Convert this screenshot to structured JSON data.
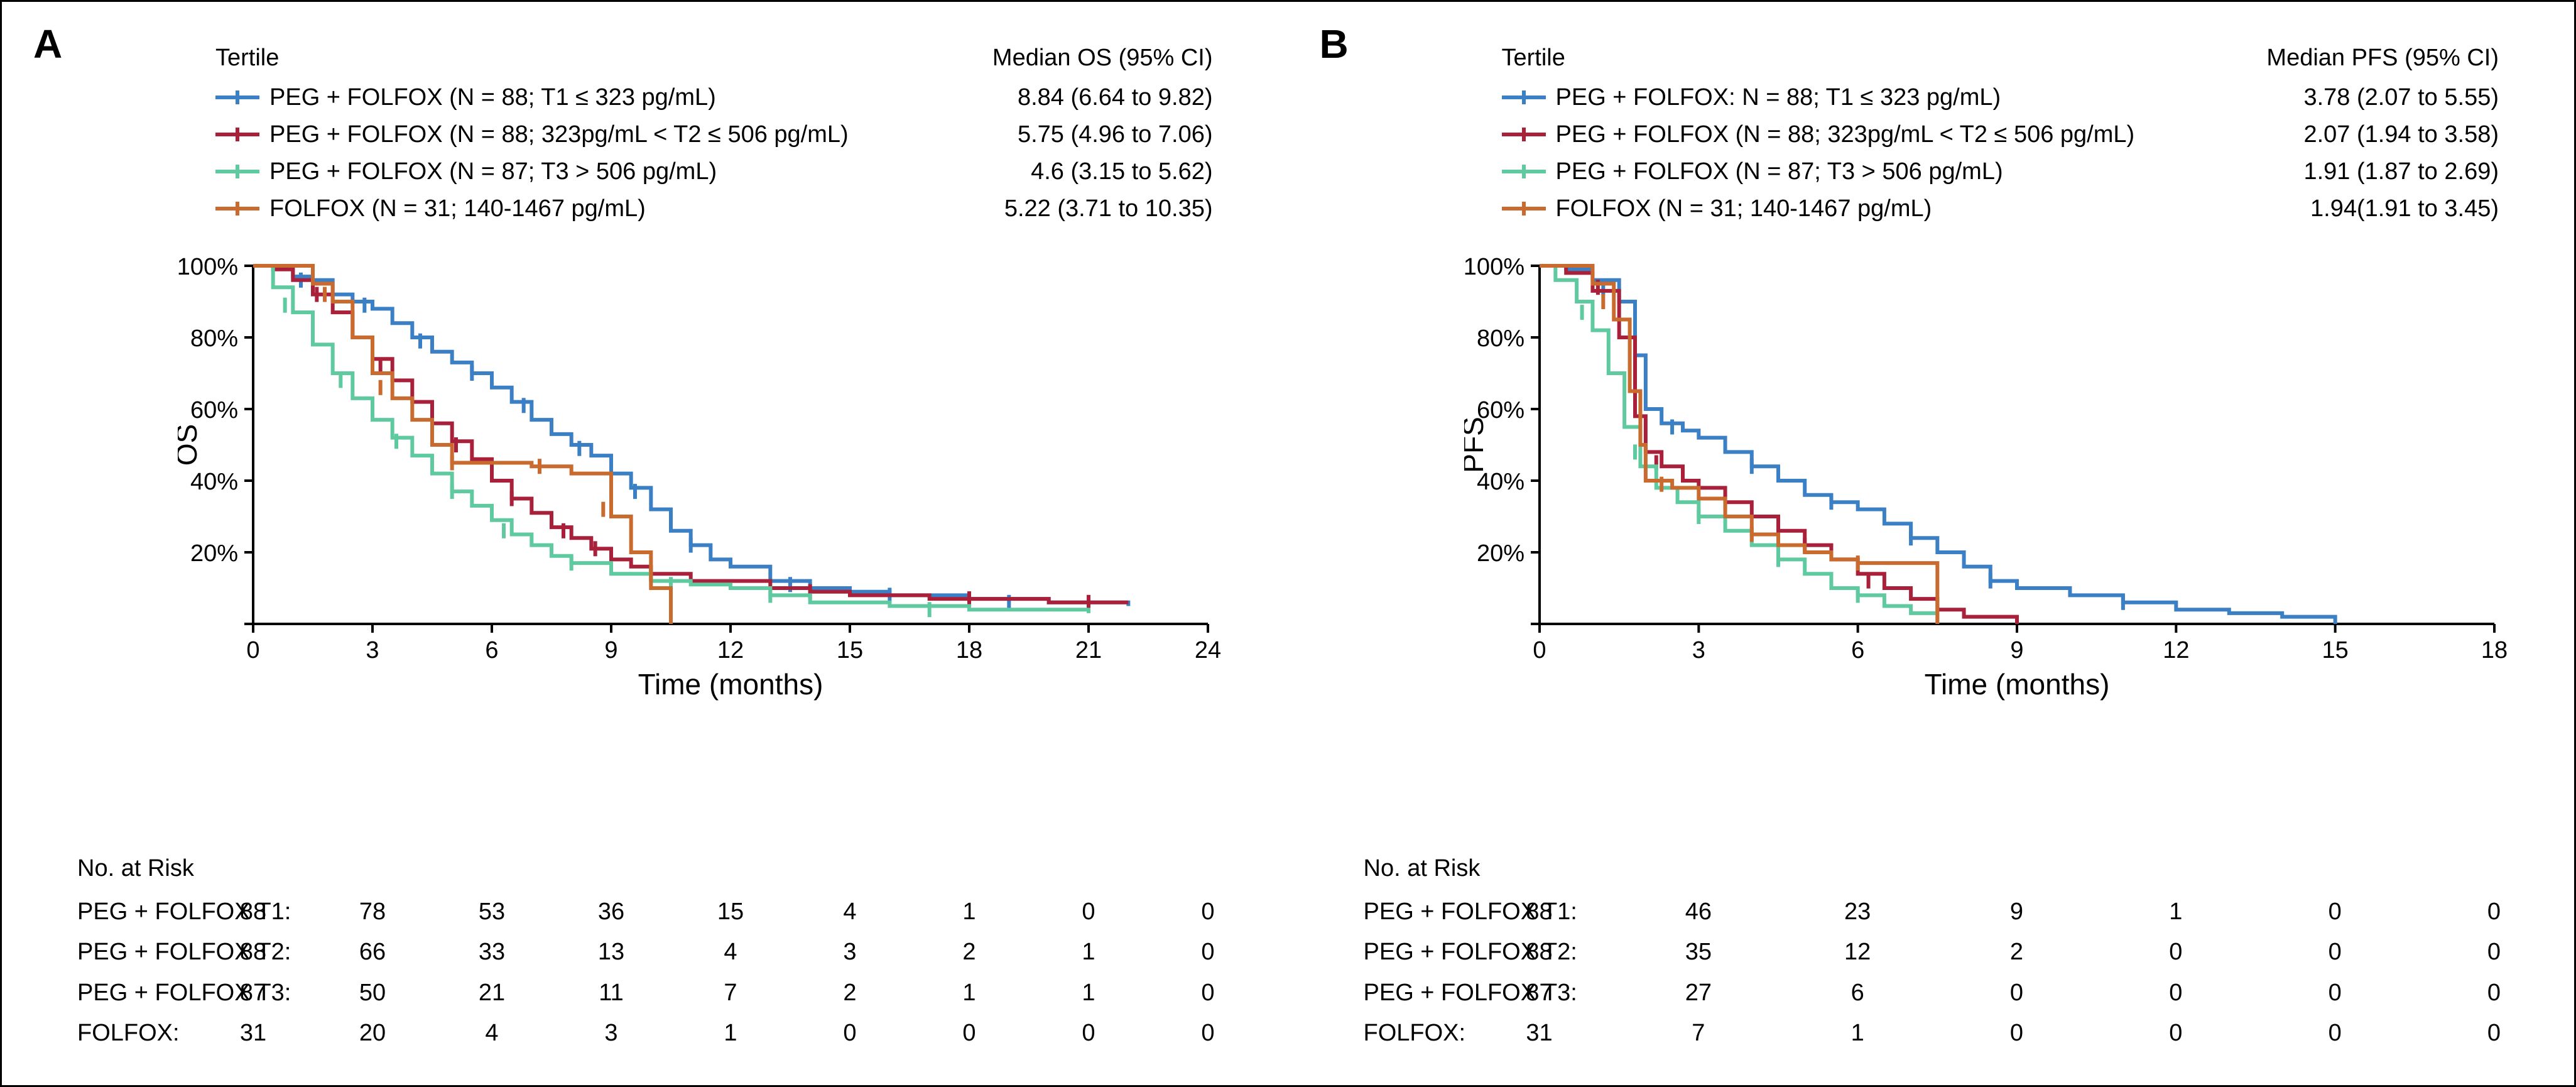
{
  "colors": {
    "t1": "#3b7fc4",
    "t2": "#a8203a",
    "t3": "#5fc9a0",
    "folfox": "#c96a2e",
    "axis": "#000000",
    "bg": "#ffffff"
  },
  "fontsize": {
    "panel_label": 64,
    "legend": 38,
    "axis_label": 46,
    "tick": 38,
    "risk": 38
  },
  "line_width": 6,
  "panels": [
    {
      "id": "A",
      "y_label": "OS",
      "x_label": "Time (months)",
      "median_header": "Median OS (95% CI)",
      "tertile_header": "Tertile",
      "xlim": [
        0,
        24
      ],
      "xtick_step": 3,
      "ylim": [
        0,
        100
      ],
      "ytick_step": 20,
      "y_suffix": "%",
      "series": [
        {
          "key": "t1",
          "label": "PEG + FOLFOX (N = 88; T1 ≤ 323 pg/mL)",
          "median": "8.84 (6.64 to 9.82)",
          "points": [
            [
              0,
              100
            ],
            [
              0.5,
              100
            ],
            [
              1,
              97
            ],
            [
              1.5,
              96
            ],
            [
              2,
              92
            ],
            [
              2.5,
              90
            ],
            [
              3,
              88
            ],
            [
              3.5,
              84
            ],
            [
              4,
              80
            ],
            [
              4.5,
              76
            ],
            [
              5,
              73
            ],
            [
              5.5,
              70
            ],
            [
              6,
              66
            ],
            [
              6.5,
              62
            ],
            [
              7,
              57
            ],
            [
              7.5,
              53
            ],
            [
              8,
              50
            ],
            [
              8.5,
              47
            ],
            [
              9,
              42
            ],
            [
              9.5,
              38
            ],
            [
              10,
              32
            ],
            [
              10.5,
              26
            ],
            [
              11,
              22
            ],
            [
              11.5,
              18
            ],
            [
              12,
              16
            ],
            [
              13,
              12
            ],
            [
              14,
              10
            ],
            [
              15,
              9
            ],
            [
              16,
              8
            ],
            [
              18,
              7
            ],
            [
              20,
              6
            ],
            [
              22,
              5
            ]
          ],
          "censors": [
            [
              1.2,
              96
            ],
            [
              2.8,
              89
            ],
            [
              4.2,
              79
            ],
            [
              5.5,
              70
            ],
            [
              6.8,
              61
            ],
            [
              8.2,
              49
            ],
            [
              9.6,
              37
            ],
            [
              11,
              22
            ],
            [
              13.5,
              11
            ],
            [
              16,
              8
            ],
            [
              19,
              6
            ]
          ]
        },
        {
          "key": "t2",
          "label": "PEG + FOLFOX (N = 88; 323pg/mL < T2 ≤ 506 pg/mL)",
          "median": "5.75 (4.96 to 7.06)",
          "points": [
            [
              0,
              100
            ],
            [
              0.5,
              99
            ],
            [
              1,
              96
            ],
            [
              1.5,
              92
            ],
            [
              2,
              87
            ],
            [
              2.5,
              80
            ],
            [
              3,
              74
            ],
            [
              3.5,
              68
            ],
            [
              4,
              62
            ],
            [
              4.5,
              56
            ],
            [
              5,
              51
            ],
            [
              5.5,
              46
            ],
            [
              6,
              40
            ],
            [
              6.5,
              35
            ],
            [
              7,
              31
            ],
            [
              7.5,
              27
            ],
            [
              8,
              24
            ],
            [
              8.5,
              21
            ],
            [
              9,
              18
            ],
            [
              9.5,
              16
            ],
            [
              10,
              14
            ],
            [
              11,
              12
            ],
            [
              12,
              12
            ],
            [
              13,
              10
            ],
            [
              14,
              9
            ],
            [
              15,
              8
            ],
            [
              17,
              7
            ],
            [
              20,
              6
            ],
            [
              22,
              6
            ]
          ],
          "censors": [
            [
              1.6,
              92
            ],
            [
              3.2,
              72
            ],
            [
              5.1,
              50
            ],
            [
              6.5,
              35
            ],
            [
              7.8,
              26
            ],
            [
              8.6,
              21
            ],
            [
              10,
              14
            ],
            [
              14,
              9
            ],
            [
              18,
              7
            ],
            [
              21,
              6
            ]
          ]
        },
        {
          "key": "t3",
          "label": "PEG + FOLFOX (N = 87; T3 > 506 pg/mL)",
          "median": "4.6 (3.15 to 5.62)",
          "points": [
            [
              0,
              100
            ],
            [
              0.5,
              94
            ],
            [
              1,
              87
            ],
            [
              1.5,
              78
            ],
            [
              2,
              70
            ],
            [
              2.5,
              63
            ],
            [
              3,
              57
            ],
            [
              3.5,
              52
            ],
            [
              4,
              47
            ],
            [
              4.5,
              42
            ],
            [
              5,
              37
            ],
            [
              5.5,
              33
            ],
            [
              6,
              29
            ],
            [
              6.5,
              25
            ],
            [
              7,
              22
            ],
            [
              7.5,
              19
            ],
            [
              8,
              17
            ],
            [
              9,
              14
            ],
            [
              10,
              12
            ],
            [
              11,
              11
            ],
            [
              12,
              10
            ],
            [
              13,
              8
            ],
            [
              14,
              6
            ],
            [
              16,
              5
            ],
            [
              18,
              4
            ],
            [
              21,
              3
            ]
          ],
          "censors": [
            [
              0.8,
              89
            ],
            [
              2.2,
              68
            ],
            [
              3.6,
              51
            ],
            [
              5,
              37
            ],
            [
              6.3,
              26
            ],
            [
              8,
              17
            ],
            [
              10.5,
              11
            ],
            [
              13,
              8
            ],
            [
              17,
              4
            ]
          ]
        },
        {
          "key": "folfox",
          "label": "FOLFOX (N = 31; 140-1467 pg/mL)",
          "median": "5.22 (3.71 to 10.35)",
          "points": [
            [
              0,
              100
            ],
            [
              1,
              100
            ],
            [
              1.5,
              95
            ],
            [
              2,
              90
            ],
            [
              2.5,
              80
            ],
            [
              3,
              70
            ],
            [
              3.5,
              63
            ],
            [
              4,
              57
            ],
            [
              4.5,
              50
            ],
            [
              5,
              45
            ],
            [
              5.5,
              45
            ],
            [
              6,
              45
            ],
            [
              7,
              44
            ],
            [
              7.5,
              44
            ],
            [
              8,
              42
            ],
            [
              8.5,
              42
            ],
            [
              9,
              30
            ],
            [
              9.5,
              20
            ],
            [
              10,
              10
            ],
            [
              10.5,
              0
            ]
          ],
          "censors": [
            [
              1.8,
              92
            ],
            [
              3.2,
              66
            ],
            [
              5,
              45
            ],
            [
              7.2,
              44
            ],
            [
              8.8,
              32
            ]
          ]
        }
      ],
      "risk_title": "No. at Risk",
      "risk_labels": [
        "PEG + FOLFOX T1:",
        "PEG + FOLFOX T2:",
        "PEG + FOLFOX T3:",
        "FOLFOX:"
      ],
      "risk_rows": [
        [
          88,
          78,
          53,
          36,
          15,
          4,
          1,
          0,
          0
        ],
        [
          88,
          66,
          33,
          13,
          4,
          3,
          2,
          1,
          0
        ],
        [
          87,
          50,
          21,
          11,
          7,
          2,
          1,
          1,
          0
        ],
        [
          31,
          20,
          4,
          3,
          1,
          0,
          0,
          0,
          0
        ]
      ]
    },
    {
      "id": "B",
      "y_label": "PFS",
      "x_label": "Time (months)",
      "median_header": "Median PFS (95% CI)",
      "tertile_header": "Tertile",
      "xlim": [
        0,
        18
      ],
      "xtick_step": 3,
      "ylim": [
        0,
        100
      ],
      "ytick_step": 20,
      "y_suffix": "%",
      "series": [
        {
          "key": "t1",
          "label": "PEG + FOLFOX: N = 88; T1 ≤ 323 pg/mL)",
          "median": "3.78 (2.07 to 5.55)",
          "points": [
            [
              0,
              100
            ],
            [
              0.5,
              99
            ],
            [
              1,
              96
            ],
            [
              1.5,
              90
            ],
            [
              1.8,
              75
            ],
            [
              2,
              60
            ],
            [
              2.3,
              56
            ],
            [
              2.7,
              54
            ],
            [
              3,
              52
            ],
            [
              3.5,
              48
            ],
            [
              4,
              44
            ],
            [
              4.5,
              40
            ],
            [
              5,
              36
            ],
            [
              5.5,
              34
            ],
            [
              6,
              32
            ],
            [
              6.5,
              28
            ],
            [
              7,
              24
            ],
            [
              7.5,
              20
            ],
            [
              8,
              16
            ],
            [
              8.5,
              12
            ],
            [
              9,
              10
            ],
            [
              10,
              8
            ],
            [
              11,
              6
            ],
            [
              12,
              4
            ],
            [
              13,
              3
            ],
            [
              14,
              2
            ],
            [
              15,
              0
            ]
          ],
          "censors": [
            [
              1.2,
              94
            ],
            [
              2.5,
              55
            ],
            [
              4,
              44
            ],
            [
              5.5,
              34
            ],
            [
              7,
              24
            ],
            [
              8.5,
              12
            ],
            [
              11,
              6
            ]
          ]
        },
        {
          "key": "t2",
          "label": "PEG + FOLFOX (N = 88; 323pg/mL < T2 ≤ 506 pg/mL)",
          "median": "2.07 (1.94 to 3.58)",
          "points": [
            [
              0,
              100
            ],
            [
              0.5,
              98
            ],
            [
              1,
              93
            ],
            [
              1.5,
              80
            ],
            [
              1.8,
              58
            ],
            [
              2,
              48
            ],
            [
              2.3,
              44
            ],
            [
              2.7,
              40
            ],
            [
              3,
              38
            ],
            [
              3.5,
              34
            ],
            [
              4,
              30
            ],
            [
              4.5,
              26
            ],
            [
              5,
              22
            ],
            [
              5.5,
              18
            ],
            [
              6,
              14
            ],
            [
              6.5,
              10
            ],
            [
              7,
              7
            ],
            [
              7.5,
              4
            ],
            [
              8,
              2
            ],
            [
              9,
              0
            ]
          ],
          "censors": [
            [
              1.1,
              94
            ],
            [
              2.2,
              45
            ],
            [
              3.5,
              34
            ],
            [
              5,
              22
            ],
            [
              6.2,
              12
            ]
          ]
        },
        {
          "key": "t3",
          "label": "PEG + FOLFOX (N = 87; T3 > 506 pg/mL)",
          "median": "1.91 (1.87 to 2.69)",
          "points": [
            [
              0,
              100
            ],
            [
              0.3,
              96
            ],
            [
              0.7,
              90
            ],
            [
              1,
              82
            ],
            [
              1.3,
              70
            ],
            [
              1.6,
              55
            ],
            [
              1.9,
              44
            ],
            [
              2.2,
              38
            ],
            [
              2.6,
              34
            ],
            [
              3,
              30
            ],
            [
              3.5,
              26
            ],
            [
              4,
              22
            ],
            [
              4.5,
              18
            ],
            [
              5,
              14
            ],
            [
              5.5,
              10
            ],
            [
              6,
              8
            ],
            [
              6.5,
              5
            ],
            [
              7,
              3
            ],
            [
              7.5,
              0
            ]
          ],
          "censors": [
            [
              0.8,
              87
            ],
            [
              1.8,
              48
            ],
            [
              3,
              30
            ],
            [
              4.5,
              18
            ],
            [
              6,
              8
            ]
          ]
        },
        {
          "key": "folfox",
          "label": "FOLFOX (N = 31; 140-1467 pg/mL)",
          "median": "1.94(1.91 to 3.45)",
          "points": [
            [
              0,
              100
            ],
            [
              0.8,
              100
            ],
            [
              1,
              95
            ],
            [
              1.4,
              85
            ],
            [
              1.7,
              65
            ],
            [
              1.9,
              50
            ],
            [
              2,
              40
            ],
            [
              2.5,
              38
            ],
            [
              3,
              35
            ],
            [
              3.5,
              30
            ],
            [
              4,
              25
            ],
            [
              4.5,
              22
            ],
            [
              5,
              20
            ],
            [
              5.5,
              18
            ],
            [
              6,
              17
            ],
            [
              6.5,
              17
            ],
            [
              7,
              17
            ],
            [
              7.5,
              0
            ]
          ],
          "censors": [
            [
              1.2,
              90
            ],
            [
              2.3,
              39
            ],
            [
              4,
              25
            ],
            [
              6,
              17
            ]
          ]
        }
      ],
      "risk_title": "No. at Risk",
      "risk_labels": [
        "PEG + FOLFOX T1:",
        "PEG + FOLFOX T2:",
        "PEG + FOLFOX T3:",
        "FOLFOX:"
      ],
      "risk_rows": [
        [
          88,
          46,
          23,
          9,
          1,
          0,
          0
        ],
        [
          88,
          35,
          12,
          2,
          0,
          0,
          0
        ],
        [
          87,
          27,
          6,
          0,
          0,
          0,
          0
        ],
        [
          31,
          7,
          1,
          0,
          0,
          0,
          0
        ]
      ]
    }
  ]
}
